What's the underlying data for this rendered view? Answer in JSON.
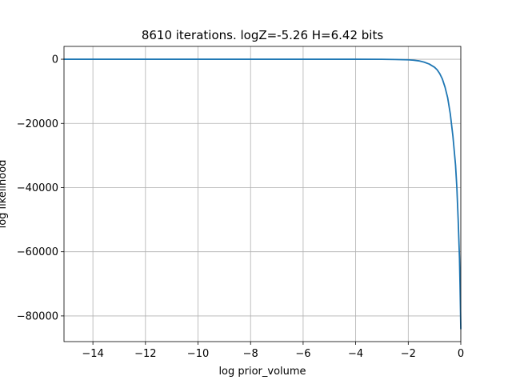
{
  "chart_data": {
    "type": "line",
    "title": "8610 iterations. logZ=-5.26 H=6.42 bits",
    "xlabel": "log prior_volume",
    "ylabel": "log likelihood",
    "xlim": [
      -15.1,
      0.0
    ],
    "ylim": [
      -88000,
      4000
    ],
    "grid": true,
    "x_ticks": [
      -14,
      -12,
      -10,
      -8,
      -6,
      -4,
      -2,
      0
    ],
    "y_ticks": [
      0,
      -20000,
      -40000,
      -60000,
      -80000
    ],
    "x_tick_labels": [
      "−14",
      "−12",
      "−10",
      "−8",
      "−6",
      "−4",
      "−2",
      "0"
    ],
    "y_tick_labels": [
      "0",
      "−20000",
      "−40000",
      "−60000",
      "−80000"
    ],
    "series": [
      {
        "color": "#1f77b4",
        "x": [
          -15.1,
          -14,
          -12,
          -10,
          -8,
          -6,
          -4,
          -3,
          -2.5,
          -2,
          -1.8,
          -1.6,
          -1.4,
          -1.2,
          -1.0,
          -0.9,
          -0.8,
          -0.7,
          -0.6,
          -0.5,
          -0.4,
          -0.3,
          -0.2,
          -0.15,
          -0.1,
          -0.05,
          -0.03,
          0.0
        ],
        "y": [
          0,
          0,
          0,
          0,
          0,
          0,
          -5,
          -30,
          -80,
          -180,
          -300,
          -500,
          -900,
          -1500,
          -2500,
          -3300,
          -4500,
          -6200,
          -8700,
          -12000,
          -17000,
          -24000,
          -33000,
          -40000,
          -50000,
          -62000,
          -70000,
          -84000
        ]
      }
    ]
  }
}
